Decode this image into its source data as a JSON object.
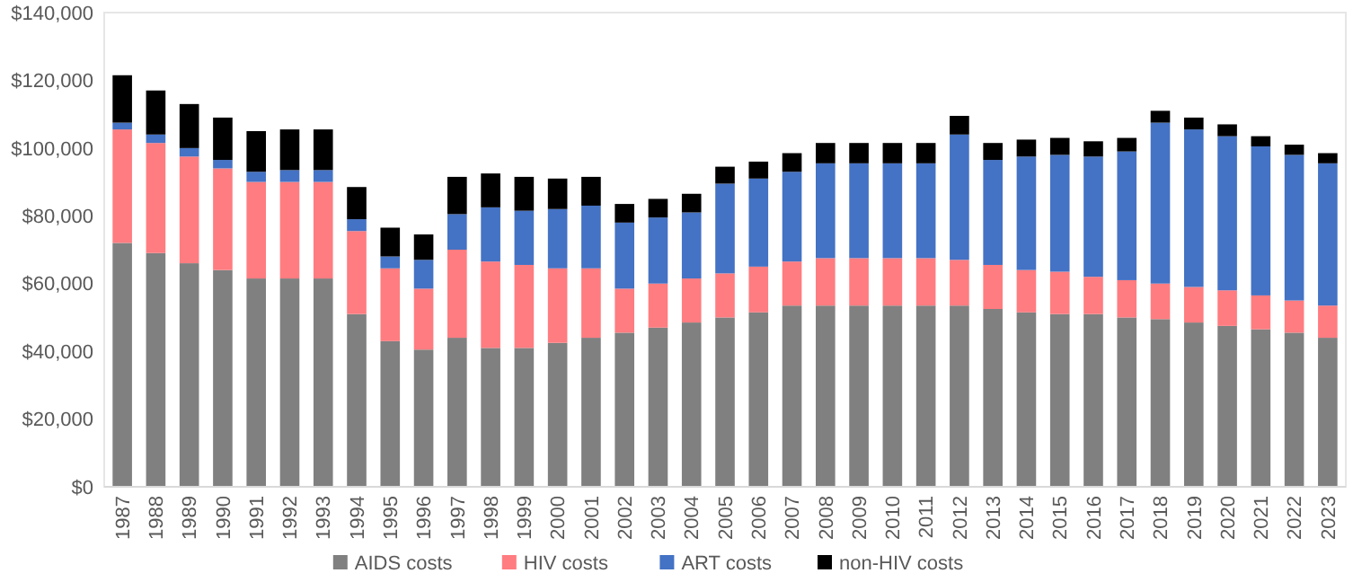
{
  "chart_data": {
    "type": "bar",
    "stacked": true,
    "legend": "bottom",
    "grid": false,
    "categories": [
      "1987",
      "1988",
      "1989",
      "1990",
      "1991",
      "1992",
      "1993",
      "1994",
      "1995",
      "1996",
      "1997",
      "1998",
      "1999",
      "2000",
      "2001",
      "2002",
      "2003",
      "2004",
      "2005",
      "2006",
      "2007",
      "2008",
      "2009",
      "2010",
      "2011",
      "2012",
      "2013",
      "2014",
      "2015",
      "2016",
      "2017",
      "2018",
      "2019",
      "2020",
      "2021",
      "2022",
      "2023"
    ],
    "ylim": [
      0,
      140000
    ],
    "yticks": [
      {
        "value": 0,
        "label": "$0"
      },
      {
        "value": 20000,
        "label": "$20,000"
      },
      {
        "value": 40000,
        "label": "$40,000"
      },
      {
        "value": 60000,
        "label": "$60,000"
      },
      {
        "value": 80000,
        "label": "$80,000"
      },
      {
        "value": 100000,
        "label": "$100,000"
      },
      {
        "value": 120000,
        "label": "$120,000"
      },
      {
        "value": 140000,
        "label": "$140,000"
      }
    ],
    "series": [
      {
        "name": "AIDS costs",
        "color": "#808080",
        "values": [
          72000,
          69000,
          66000,
          64000,
          61500,
          61500,
          61500,
          51000,
          43000,
          40500,
          44000,
          41000,
          41000,
          42500,
          44000,
          45500,
          47000,
          48500,
          50000,
          51500,
          53500,
          53500,
          53500,
          53500,
          53500,
          53500,
          52500,
          51500,
          51000,
          51000,
          50000,
          49500,
          48500,
          47500,
          46500,
          45500,
          44000
        ]
      },
      {
        "name": "HIV costs",
        "color": "#ff7c80",
        "values": [
          33500,
          32500,
          31500,
          30000,
          28500,
          28500,
          28500,
          24500,
          21500,
          18000,
          26000,
          25500,
          24500,
          22000,
          20500,
          13000,
          13000,
          13000,
          13000,
          13500,
          13000,
          14000,
          14000,
          14000,
          14000,
          13500,
          13000,
          12500,
          12500,
          11000,
          11000,
          10500,
          10500,
          10500,
          10000,
          9500,
          9500
        ]
      },
      {
        "name": "ART costs",
        "color": "#4472c4",
        "values": [
          2000,
          2500,
          2500,
          2500,
          3000,
          3500,
          3500,
          3500,
          3500,
          8500,
          10500,
          16000,
          16000,
          17500,
          18500,
          19500,
          19500,
          19500,
          26500,
          26000,
          26500,
          28000,
          28000,
          28000,
          28000,
          37000,
          31000,
          33500,
          34500,
          35500,
          38000,
          47500,
          46500,
          45500,
          44000,
          43000,
          42000
        ]
      },
      {
        "name": "non-HIV costs",
        "color": "#000000",
        "values": [
          14000,
          13000,
          13000,
          12500,
          12000,
          12000,
          12000,
          9500,
          8500,
          7500,
          11000,
          10000,
          10000,
          9000,
          8500,
          5500,
          5500,
          5500,
          5000,
          5000,
          5500,
          6000,
          6000,
          6000,
          6000,
          5500,
          5000,
          5000,
          5000,
          4500,
          4000,
          3500,
          3500,
          3500,
          3000,
          3000,
          3000
        ]
      }
    ]
  }
}
